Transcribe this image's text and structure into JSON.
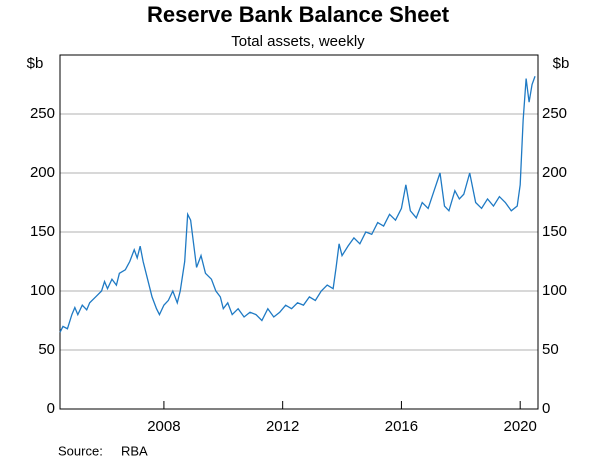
{
  "chart_data": {
    "type": "line",
    "title": "Reserve Bank Balance Sheet",
    "subtitle": "Total assets, weekly",
    "y_label": "$b",
    "source_label": "Source:",
    "source": "RBA",
    "x": [
      2004.5,
      2004.6,
      2004.75,
      2004.9,
      2005.0,
      2005.1,
      2005.25,
      2005.4,
      2005.5,
      2005.7,
      2005.9,
      2006.0,
      2006.1,
      2006.25,
      2006.4,
      2006.5,
      2006.7,
      2006.85,
      2007.0,
      2007.1,
      2007.2,
      2007.3,
      2007.45,
      2007.6,
      2007.75,
      2007.85,
      2008.0,
      2008.15,
      2008.3,
      2008.45,
      2008.55,
      2008.7,
      2008.8,
      2008.9,
      2009.0,
      2009.1,
      2009.25,
      2009.4,
      2009.6,
      2009.75,
      2009.9,
      2010.0,
      2010.15,
      2010.3,
      2010.5,
      2010.7,
      2010.9,
      2011.1,
      2011.3,
      2011.5,
      2011.7,
      2011.9,
      2012.1,
      2012.3,
      2012.5,
      2012.7,
      2012.9,
      2013.1,
      2013.3,
      2013.5,
      2013.7,
      2013.8,
      2013.9,
      2014.0,
      2014.2,
      2014.4,
      2014.6,
      2014.8,
      2015.0,
      2015.2,
      2015.4,
      2015.6,
      2015.8,
      2016.0,
      2016.15,
      2016.3,
      2016.5,
      2016.7,
      2016.9,
      2017.1,
      2017.3,
      2017.45,
      2017.6,
      2017.8,
      2017.95,
      2018.1,
      2018.3,
      2018.5,
      2018.7,
      2018.9,
      2019.1,
      2019.3,
      2019.5,
      2019.7,
      2019.9,
      2020.0,
      2020.1,
      2020.2,
      2020.3,
      2020.4,
      2020.5
    ],
    "series": [
      {
        "name": "Total assets",
        "color": "#1f7ac4",
        "values": [
          65,
          70,
          68,
          80,
          86,
          80,
          88,
          84,
          90,
          95,
          100,
          108,
          102,
          110,
          105,
          115,
          118,
          125,
          135,
          128,
          138,
          125,
          110,
          95,
          85,
          80,
          88,
          92,
          100,
          90,
          100,
          125,
          165,
          160,
          140,
          120,
          130,
          115,
          110,
          100,
          95,
          85,
          90,
          80,
          85,
          78,
          82,
          80,
          75,
          85,
          78,
          82,
          88,
          85,
          90,
          88,
          95,
          92,
          100,
          105,
          102,
          120,
          140,
          130,
          138,
          145,
          140,
          150,
          148,
          158,
          155,
          165,
          160,
          170,
          190,
          168,
          162,
          175,
          170,
          185,
          200,
          172,
          168,
          185,
          178,
          182,
          200,
          175,
          170,
          178,
          172,
          180,
          175,
          168,
          172,
          190,
          245,
          280,
          260,
          275,
          282
        ]
      }
    ],
    "xlim": [
      2004.5,
      2020.6
    ],
    "xticks": [
      2008,
      2012,
      2016,
      2020
    ],
    "ylim": [
      0,
      300
    ],
    "yticks": [
      0,
      50,
      100,
      150,
      200,
      250
    ],
    "grid": true
  }
}
